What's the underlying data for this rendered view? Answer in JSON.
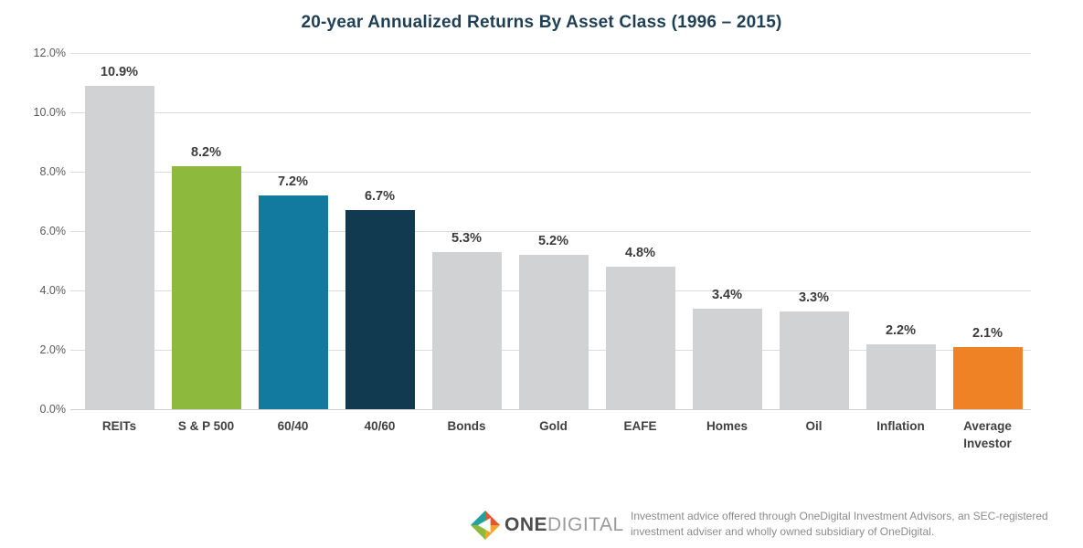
{
  "title": "20-year Annualized Returns By Asset Class (1996 – 2015)",
  "chart_data": {
    "type": "bar",
    "title": "20-year Annualized Returns By Asset Class (1996 – 2015)",
    "categories": [
      "REITs",
      "S & P 500",
      "60/40",
      "40/60",
      "Bonds",
      "Gold",
      "EAFE",
      "Homes",
      "Oil",
      "Inflation",
      "Average Investor"
    ],
    "values": [
      10.9,
      8.2,
      7.2,
      6.7,
      5.3,
      5.2,
      4.8,
      3.4,
      3.3,
      2.2,
      2.1
    ],
    "value_labels": [
      "10.9%",
      "8.2%",
      "7.2%",
      "6.7%",
      "5.3%",
      "5.2%",
      "4.8%",
      "3.4%",
      "3.3%",
      "2.2%",
      "2.1%"
    ],
    "bar_colors": [
      "#d1d2d4",
      "#8dba3d",
      "#12799f",
      "#113950",
      "#d1d2d4",
      "#d1d2d4",
      "#d1d2d4",
      "#d1d2d4",
      "#d1d2d4",
      "#d1d2d4",
      "#f08226"
    ],
    "xlabel": "",
    "ylabel": "",
    "ylim": [
      0,
      12
    ],
    "yticks": [
      "12.0%",
      "10.0%",
      "8.0%",
      "6.0%",
      "4.0%",
      "2.0%",
      "0.0%"
    ],
    "grid": true,
    "legend": false
  },
  "colors": {
    "title": "#1e3f54",
    "bar_default": "#d1d2d4",
    "bar_green": "#8dba3d",
    "bar_blue": "#12799f",
    "bar_navy": "#113950",
    "bar_orange": "#f08226",
    "gridline": "#dcdcde"
  },
  "footer": {
    "logo_one": "ONE",
    "logo_digital": "DIGITAL",
    "disclaimer": "Investment advice offered through OneDigital Investment Advisors, an SEC-registered investment adviser and wholly owned subsidiary of OneDigital."
  }
}
